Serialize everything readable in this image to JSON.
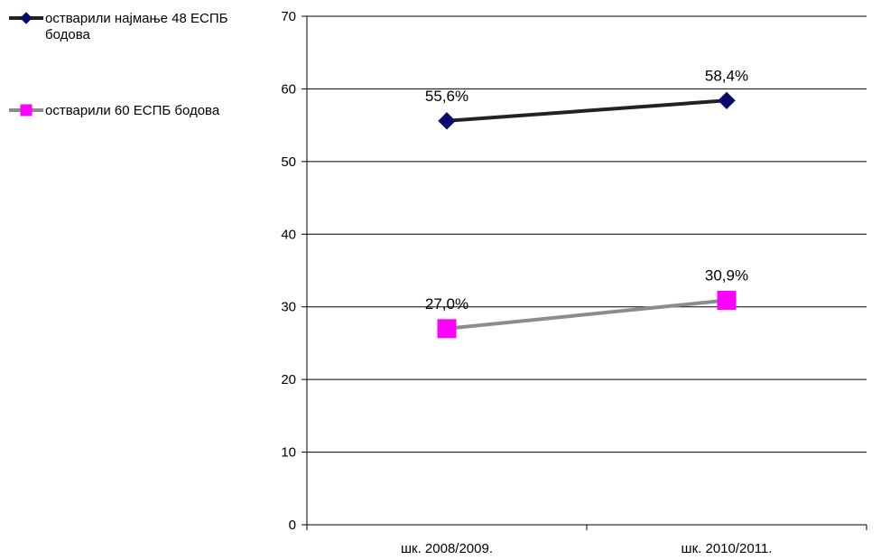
{
  "chart_data": {
    "type": "line",
    "categories": [
      "шк. 2008/2009.",
      "шк. 2010/2011."
    ],
    "ylim": [
      0,
      70
    ],
    "yticks": [
      0,
      10,
      20,
      30,
      40,
      50,
      60,
      70
    ],
    "grid": true,
    "legend_position": "top-left",
    "series": [
      {
        "name": "остварили најмање 48 ЕСПБ бодова",
        "values": [
          55.6,
          58.4
        ],
        "labels": [
          "55,6%",
          "58,4%"
        ],
        "line_color": "#222222",
        "marker_color": "#0a0a6e",
        "marker": "diamond"
      },
      {
        "name": "остварили 60 ЕСПБ бодова",
        "values": [
          27.0,
          30.9
        ],
        "labels": [
          "27,0%",
          "30,9%"
        ],
        "line_color": "#8c8c8c",
        "marker_color": "#ff00ff",
        "marker": "square"
      }
    ]
  }
}
